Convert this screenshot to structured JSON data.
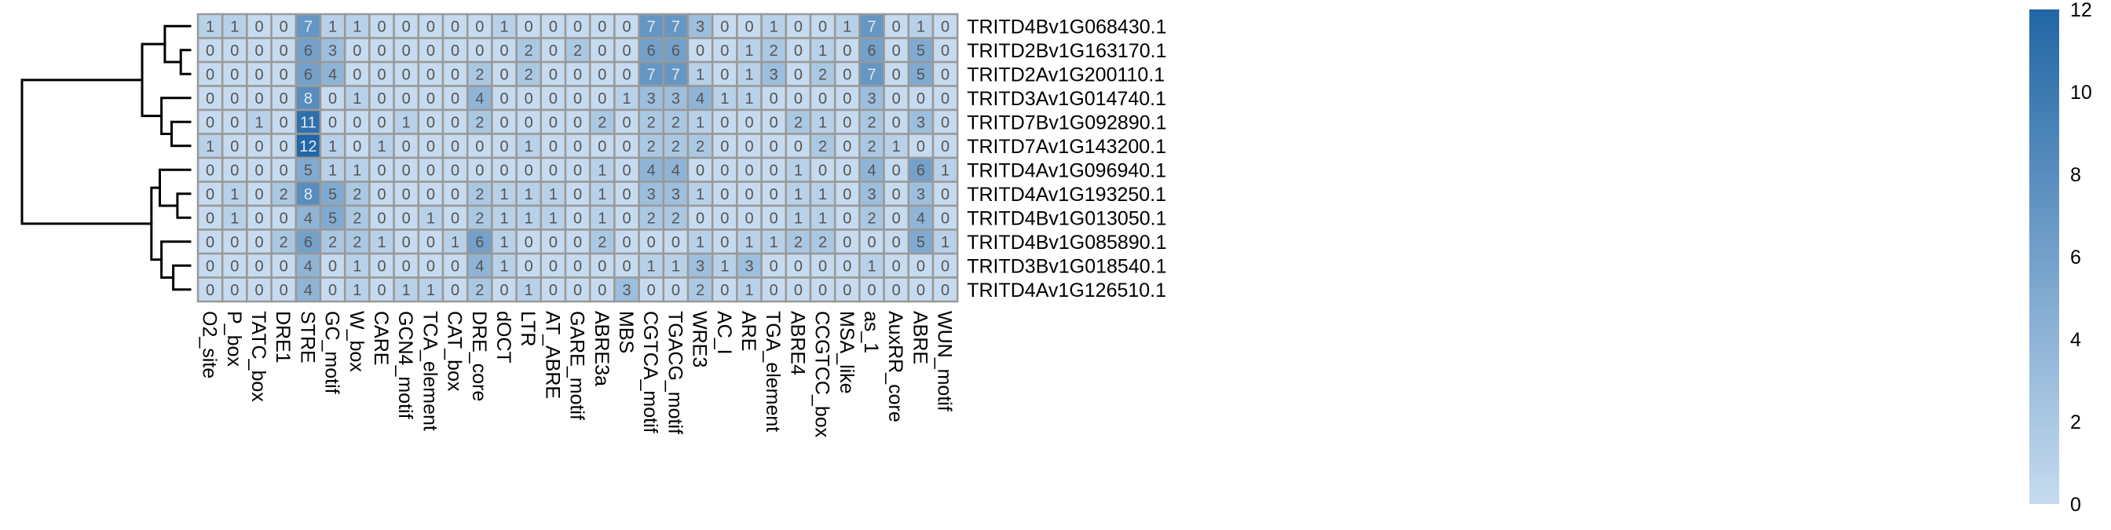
{
  "chart_data": {
    "type": "heatmap",
    "columns": [
      "O2_site",
      "P_box",
      "TATC_box",
      "DRE1",
      "STRE",
      "GC_motif",
      "W_box",
      "CARE",
      "GCN4_motif",
      "TCA_element",
      "CAT_box",
      "DRE_core",
      "dOCT",
      "LTR",
      "AT_ABRE",
      "GARE_motif",
      "ABRE3a",
      "MBS",
      "CGTCA_motif",
      "TGACG_motif",
      "WRE3",
      "AC_I",
      "ARE",
      "TGA_element",
      "ABRE4",
      "CCGTCC_box",
      "MSA_like",
      "as_1",
      "AuxRR_core",
      "ABRE",
      "WUN_motif"
    ],
    "rows": [
      "TRITD4Bv1G068430.1",
      "TRITD2Bv1G163170.1",
      "TRITD2Av1G200110.1",
      "TRITD3Av1G014740.1",
      "TRITD7Bv1G092890.1",
      "TRITD7Av1G143200.1",
      "TRITD4Av1G096940.1",
      "TRITD4Av1G193250.1",
      "TRITD4Bv1G013050.1",
      "TRITD4Bv1G085890.1",
      "TRITD3Bv1G018540.1",
      "TRITD4Av1G126510.1"
    ],
    "values": [
      [
        1,
        1,
        0,
        0,
        7,
        1,
        1,
        0,
        0,
        0,
        0,
        0,
        1,
        0,
        0,
        0,
        0,
        0,
        7,
        7,
        3,
        0,
        0,
        1,
        0,
        0,
        1,
        7,
        0,
        1,
        0
      ],
      [
        0,
        0,
        0,
        0,
        6,
        3,
        0,
        0,
        0,
        0,
        0,
        0,
        0,
        2,
        0,
        2,
        0,
        0,
        6,
        6,
        0,
        0,
        1,
        2,
        0,
        1,
        0,
        6,
        0,
        5,
        0
      ],
      [
        0,
        0,
        0,
        0,
        6,
        4,
        0,
        0,
        0,
        0,
        0,
        2,
        0,
        2,
        0,
        0,
        0,
        0,
        7,
        7,
        1,
        0,
        1,
        3,
        0,
        2,
        0,
        7,
        0,
        5,
        0
      ],
      [
        0,
        0,
        0,
        0,
        8,
        0,
        1,
        0,
        0,
        0,
        0,
        4,
        0,
        0,
        0,
        0,
        0,
        1,
        3,
        3,
        4,
        1,
        1,
        0,
        0,
        0,
        0,
        3,
        0,
        0,
        0
      ],
      [
        0,
        0,
        1,
        0,
        11,
        0,
        0,
        0,
        1,
        0,
        0,
        2,
        0,
        0,
        0,
        0,
        2,
        0,
        2,
        2,
        1,
        0,
        0,
        0,
        2,
        1,
        0,
        2,
        0,
        3,
        0
      ],
      [
        1,
        0,
        0,
        0,
        12,
        1,
        0,
        1,
        0,
        0,
        0,
        0,
        0,
        1,
        0,
        0,
        0,
        0,
        2,
        2,
        2,
        0,
        0,
        0,
        0,
        2,
        0,
        2,
        1,
        0,
        0
      ],
      [
        0,
        0,
        0,
        0,
        5,
        1,
        1,
        0,
        0,
        0,
        0,
        0,
        0,
        0,
        0,
        0,
        1,
        0,
        4,
        4,
        0,
        0,
        0,
        0,
        1,
        0,
        0,
        4,
        0,
        6,
        1
      ],
      [
        0,
        1,
        0,
        2,
        8,
        5,
        2,
        0,
        0,
        0,
        0,
        2,
        1,
        1,
        1,
        0,
        1,
        0,
        3,
        3,
        1,
        0,
        0,
        0,
        1,
        1,
        0,
        3,
        0,
        3,
        0
      ],
      [
        0,
        1,
        0,
        0,
        4,
        5,
        2,
        0,
        0,
        1,
        0,
        2,
        1,
        1,
        1,
        0,
        1,
        0,
        2,
        2,
        0,
        0,
        0,
        0,
        1,
        1,
        0,
        2,
        0,
        4,
        0
      ],
      [
        0,
        0,
        0,
        2,
        6,
        2,
        2,
        1,
        0,
        0,
        1,
        6,
        1,
        0,
        0,
        0,
        2,
        0,
        0,
        0,
        1,
        0,
        1,
        1,
        2,
        2,
        0,
        0,
        0,
        5,
        1
      ],
      [
        0,
        0,
        0,
        0,
        4,
        0,
        1,
        0,
        0,
        0,
        0,
        4,
        1,
        0,
        0,
        0,
        0,
        0,
        1,
        1,
        3,
        1,
        3,
        0,
        0,
        0,
        0,
        1,
        0,
        0,
        0
      ],
      [
        0,
        0,
        0,
        0,
        4,
        0,
        1,
        0,
        1,
        1,
        0,
        2,
        0,
        1,
        0,
        0,
        0,
        3,
        0,
        0,
        2,
        0,
        1,
        0,
        0,
        0,
        0,
        0,
        0,
        0,
        0
      ]
    ],
    "color_scale": {
      "min": 0,
      "max": 12,
      "low_color": "#c6dbef",
      "high_color": "#2166a5",
      "ticks": [
        "0",
        "2",
        "4",
        "6",
        "8",
        "10",
        "12"
      ]
    },
    "cell_border_color": "#999999",
    "dendrogram": "left",
    "legend_placement": "right"
  }
}
